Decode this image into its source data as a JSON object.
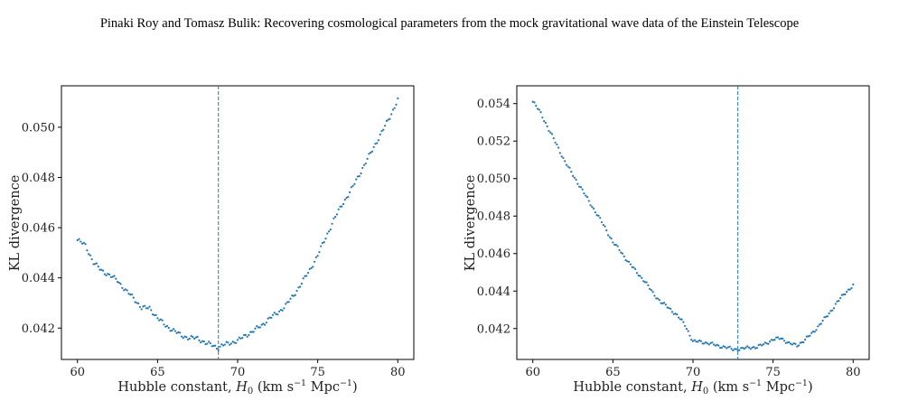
{
  "header": {
    "running_title": "Pinaki Roy  and Tomasz Bulik: Recovering cosmological parameters from the mock gravitational wave data of the Einstein Telescope"
  },
  "colors": {
    "points": "#1f77b4",
    "marker_line": "#1f77b4",
    "axes": "#000000"
  },
  "chart_data": [
    {
      "type": "scatter",
      "xlabel": "Hubble constant, H0 (km s⁻¹ Mpc⁻¹)",
      "ylabel": "KL divergence",
      "xlim": [
        59,
        81
      ],
      "ylim": [
        0.04075,
        0.05165
      ],
      "xticks": [
        60,
        65,
        70,
        75,
        80
      ],
      "yticks": [
        0.042,
        0.044,
        0.046,
        0.048,
        0.05
      ],
      "ytick_labels": [
        "0.042",
        "0.044",
        "0.046",
        "0.048",
        "0.050"
      ],
      "vline_x": 68.8,
      "x_range": [
        60,
        80
      ],
      "n_points": 201,
      "anchors_x": [
        60.0,
        60.5,
        61.0,
        61.5,
        62.0,
        62.5,
        63.0,
        63.5,
        64.0,
        64.5,
        65.0,
        65.5,
        66.0,
        66.5,
        67.0,
        67.5,
        68.0,
        68.5,
        68.8,
        69.0,
        69.5,
        70.0,
        70.5,
        71.0,
        71.5,
        72.0,
        72.5,
        73.0,
        73.5,
        74.0,
        74.5,
        75.0,
        75.5,
        76.0,
        76.5,
        77.0,
        77.5,
        78.0,
        78.5,
        79.0,
        79.5,
        80.0
      ],
      "anchors_y": [
        0.0455,
        0.0453,
        0.0446,
        0.0443,
        0.0441,
        0.0439,
        0.0435,
        0.0432,
        0.0428,
        0.0428,
        0.0424,
        0.0421,
        0.0419,
        0.0417,
        0.0416,
        0.0416,
        0.0414,
        0.0413,
        0.0412,
        0.0413,
        0.0414,
        0.0415,
        0.0417,
        0.0419,
        0.0421,
        0.0424,
        0.0426,
        0.0429,
        0.0433,
        0.0438,
        0.0443,
        0.0449,
        0.0456,
        0.0463,
        0.0469,
        0.0474,
        0.048,
        0.0486,
        0.0492,
        0.0498,
        0.0504,
        0.0511
      ]
    },
    {
      "type": "scatter",
      "xlabel": "Hubble constant, H0 (km s⁻¹ Mpc⁻¹)",
      "ylabel": "KL divergence",
      "xlim": [
        59,
        81
      ],
      "ylim": [
        0.04035,
        0.05495
      ],
      "xticks": [
        60,
        65,
        70,
        75,
        80
      ],
      "yticks": [
        0.042,
        0.044,
        0.046,
        0.048,
        0.05,
        0.052,
        0.054
      ],
      "ytick_labels": [
        "0.042",
        "0.044",
        "0.046",
        "0.048",
        "0.050",
        "0.052",
        "0.054"
      ],
      "vline_x": 72.8,
      "x_range": [
        60,
        80
      ],
      "n_points": 201,
      "anchors_x": [
        60.0,
        60.5,
        61.0,
        61.5,
        62.0,
        62.5,
        63.0,
        63.5,
        64.0,
        64.5,
        65.0,
        65.5,
        66.0,
        66.5,
        67.0,
        67.5,
        68.0,
        68.5,
        69.0,
        69.5,
        70.0,
        70.5,
        71.0,
        71.5,
        72.0,
        72.5,
        73.0,
        73.5,
        74.0,
        74.5,
        75.0,
        75.5,
        76.0,
        76.5,
        77.0,
        77.5,
        78.0,
        78.5,
        79.0,
        79.5,
        80.0
      ],
      "anchors_y": [
        0.0541,
        0.0535,
        0.0526,
        0.0518,
        0.0509,
        0.0502,
        0.0495,
        0.0488,
        0.0481,
        0.0474,
        0.0466,
        0.0461,
        0.0455,
        0.045,
        0.0445,
        0.0439,
        0.0434,
        0.0431,
        0.0427,
        0.0422,
        0.0413,
        0.0413,
        0.0412,
        0.0411,
        0.041,
        0.0409,
        0.0409,
        0.041,
        0.041,
        0.0412,
        0.0414,
        0.0415,
        0.0412,
        0.0411,
        0.0414,
        0.0418,
        0.0423,
        0.0428,
        0.0434,
        0.0439,
        0.0443
      ]
    }
  ]
}
